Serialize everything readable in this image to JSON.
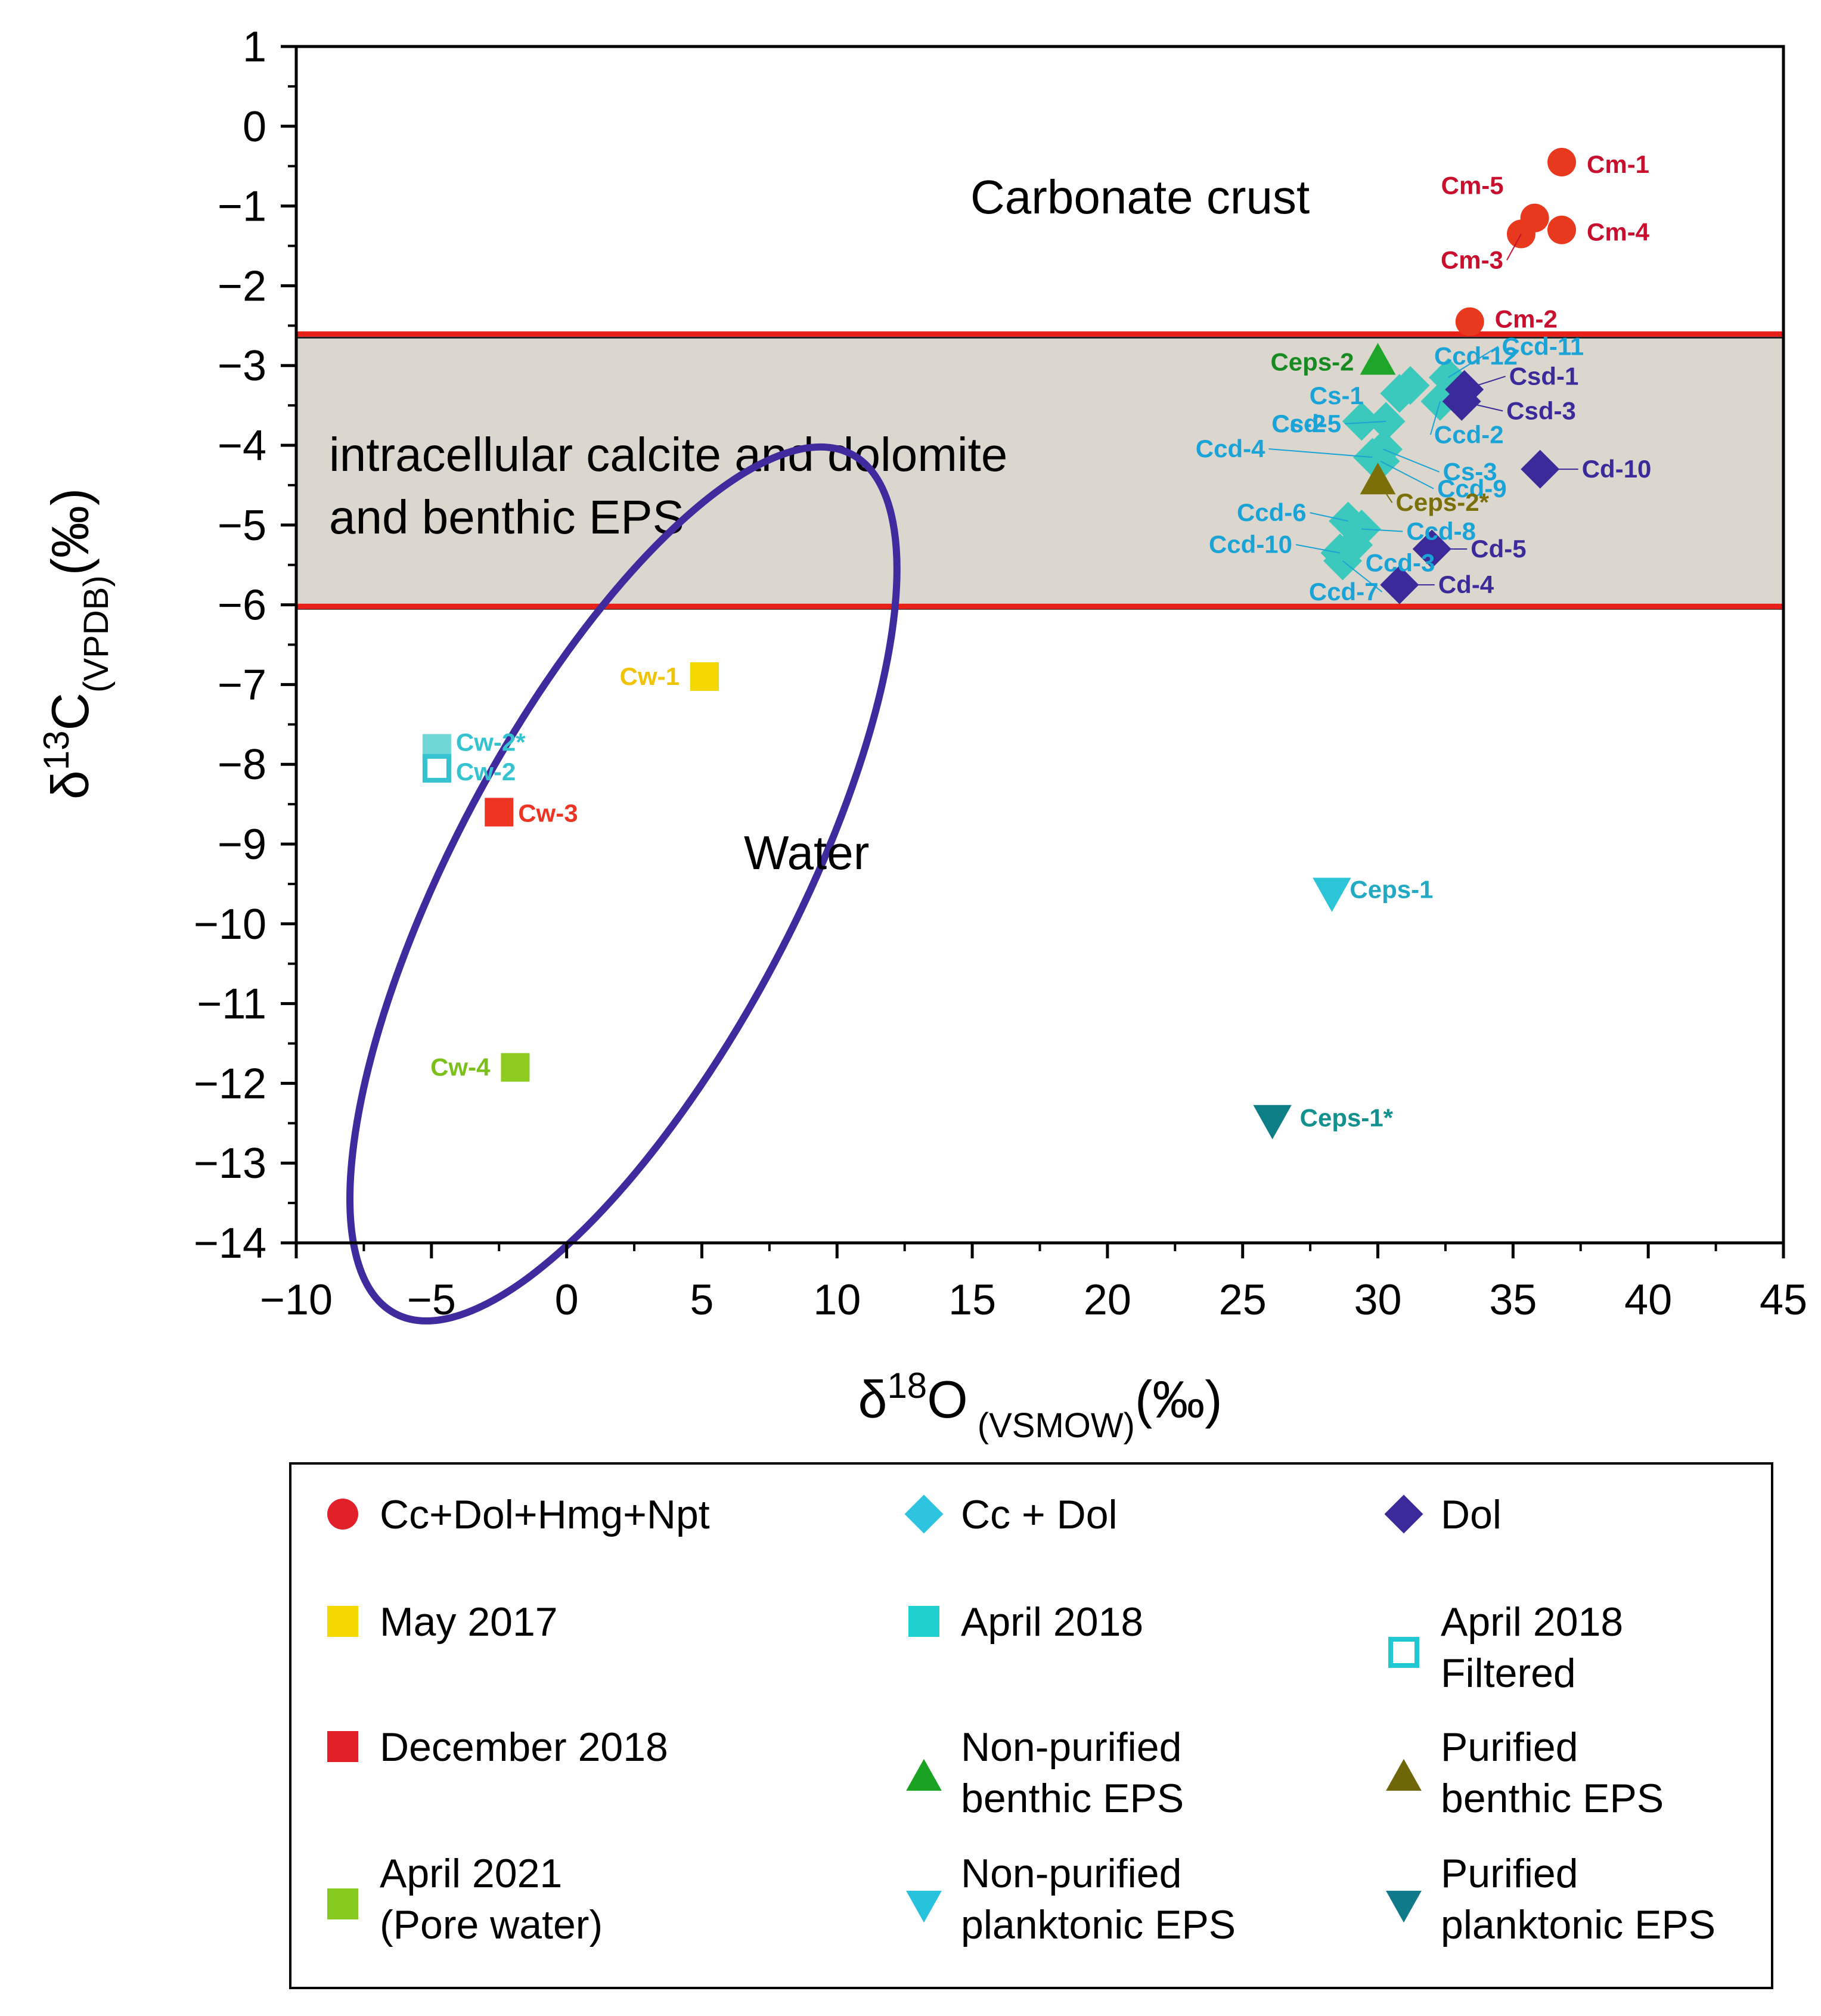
{
  "chart_data": {
    "type": "scatter",
    "xlabel": {
      "pre": "δ",
      "sup": "18",
      "main": "O",
      "sub": " (VSMOW)",
      "post": "(‰)"
    },
    "ylabel": {
      "pre": "δ",
      "sup": "13",
      "main": "C",
      "sub": "(VPDB)",
      "post": "(‰)"
    },
    "xlim": [
      -10,
      45
    ],
    "ylim": [
      -14,
      1
    ],
    "xticks": [
      -10,
      -5,
      0,
      5,
      10,
      15,
      20,
      25,
      30,
      35,
      40,
      45
    ],
    "yticks": [
      1,
      0,
      -1,
      -2,
      -3,
      -4,
      -5,
      -6,
      -7,
      -8,
      -9,
      -10,
      -11,
      -12,
      -13,
      -14
    ],
    "grid": false,
    "regions": {
      "carbonate_crust": {
        "label": "Carbonate crust"
      },
      "band": {
        "y_top": -2.65,
        "y_bottom": -6.05,
        "label_line1": "intracellular calcite and dolomite",
        "label_line2": "and benthic EPS",
        "fill": "#dcd7ce",
        "line_color": "#e8201a"
      },
      "water": {
        "label": "Water",
        "cx": 2.1,
        "cy": -9.5,
        "rx_x_units": 6.3,
        "ry_y_units": 6.1,
        "rotation_deg": 28,
        "color": "#3f2a9e"
      }
    },
    "series": [
      {
        "name": "Cc+Dol+Hmg+Npt",
        "marker": "circle",
        "color": "#e8391e",
        "label_color": "#c8102e",
        "points": [
          {
            "label": "Cm-1",
            "x": 36.8,
            "y": -0.45
          },
          {
            "label": "Cm-5",
            "x": 35.8,
            "y": -1.15
          },
          {
            "label": "Cm-4",
            "x": 36.8,
            "y": -1.3
          },
          {
            "label": "Cm-3",
            "x": 35.3,
            "y": -1.35
          },
          {
            "label": "Cm-2",
            "x": 33.4,
            "y": -2.45
          }
        ]
      },
      {
        "name": "Cc + Dol",
        "marker": "diamond",
        "color": "#3cc9bd",
        "label_color": "#1aa3d6",
        "points": [
          {
            "label": "Ccd-12",
            "x": 31.2,
            "y": -3.25
          },
          {
            "label": "Ccd-11",
            "x": 32.6,
            "y": -3.15
          },
          {
            "label": "Cs-1",
            "x": 30.8,
            "y": -3.35
          },
          {
            "label": "Ccd-2",
            "x": 32.3,
            "y": -3.45
          },
          {
            "label": "Cs-2",
            "x": 29.4,
            "y": -3.7
          },
          {
            "label": "Ccd-5",
            "x": 30.3,
            "y": -3.7
          },
          {
            "label": "Cs-3",
            "x": 30.2,
            "y": -4.05
          },
          {
            "label": "Ccd-9",
            "x": 30.1,
            "y": -4.2
          },
          {
            "label": "Ccd-4",
            "x": 29.8,
            "y": -4.15
          },
          {
            "label": "Ccd-6",
            "x": 28.9,
            "y": -4.95
          },
          {
            "label": "Ccd-8",
            "x": 29.4,
            "y": -5.05
          },
          {
            "label": "Ccd-10",
            "x": 28.6,
            "y": -5.35
          },
          {
            "label": "Ccd-3",
            "x": 29.1,
            "y": -5.25
          },
          {
            "label": "Ccd-7",
            "x": 28.7,
            "y": -5.45
          }
        ]
      },
      {
        "name": "Dol",
        "marker": "diamond",
        "color": "#3a2a9a",
        "label_color": "#3a2a9a",
        "points": [
          {
            "label": "Csd-1",
            "x": 33.2,
            "y": -3.3
          },
          {
            "label": "Csd-3",
            "x": 33.1,
            "y": -3.45
          },
          {
            "label": "Cd-10",
            "x": 36.0,
            "y": -4.3
          },
          {
            "label": "Cd-5",
            "x": 32.0,
            "y": -5.3
          },
          {
            "label": "Cd-4",
            "x": 30.8,
            "y": -5.75
          }
        ]
      },
      {
        "name": "May 2017",
        "marker": "square",
        "color": "#f5d800",
        "label_color": "#f0c400",
        "points": [
          {
            "label": "Cw-1",
            "x": 5.1,
            "y": -6.9
          }
        ]
      },
      {
        "name": "April 2018",
        "marker": "square",
        "color": "#6fd8d6",
        "label_color": "#35c4cf",
        "points": [
          {
            "label": "Cw-2*",
            "x": -4.8,
            "y": -7.8
          }
        ]
      },
      {
        "name": "April 2018 Filtered",
        "marker": "square-open",
        "color": "#35c4cf",
        "label_color": "#35c4cf",
        "points": [
          {
            "label": "Cw-2",
            "x": -4.8,
            "y": -8.05
          }
        ]
      },
      {
        "name": "December 2018",
        "marker": "square",
        "color": "#ee3524",
        "label_color": "#ee3524",
        "points": [
          {
            "label": "Cw-3",
            "x": -2.5,
            "y": -8.6
          }
        ]
      },
      {
        "name": "April 2021 (Pore water)",
        "marker": "square",
        "color": "#8dcb20",
        "label_color": "#7cc01c",
        "points": [
          {
            "label": "Cw-4",
            "x": -1.9,
            "y": -11.8
          }
        ]
      },
      {
        "name": "Non-purified benthic EPS",
        "marker": "triangle-up",
        "color": "#1fa52a",
        "label_color": "#178a22",
        "points": [
          {
            "label": "Ceps-2",
            "x": 30.0,
            "y": -2.95
          }
        ]
      },
      {
        "name": "Purified benthic EPS",
        "marker": "triangle-up",
        "color": "#7a6f08",
        "label_color": "#7a6f08",
        "points": [
          {
            "label": "Ceps-2*",
            "x": 30.0,
            "y": -4.45
          }
        ]
      },
      {
        "name": "Non-purified planktonic EPS",
        "marker": "triangle-down",
        "color": "#2cc5d8",
        "label_color": "#22a9c4",
        "points": [
          {
            "label": "Ceps-1",
            "x": 28.3,
            "y": -9.6
          }
        ]
      },
      {
        "name": "Purified planktonic EPS",
        "marker": "triangle-down",
        "color": "#0d7d86",
        "label_color": "#13918f",
        "points": [
          {
            "label": "Ceps-1*",
            "x": 26.1,
            "y": -12.45
          }
        ]
      }
    ],
    "legend": {
      "placement": "bottom",
      "entries": [
        {
          "series": "Cc+Dol+Hmg+Npt",
          "marker": "circle",
          "color": "#e1202a",
          "lines": [
            "Cc+Dol+Hmg+Npt"
          ]
        },
        {
          "series": "Cc + Dol",
          "marker": "diamond",
          "color": "#2ec3df",
          "lines": [
            "Cc + Dol"
          ]
        },
        {
          "series": "Dol",
          "marker": "diamond",
          "color": "#3a2a9a",
          "lines": [
            "Dol"
          ]
        },
        {
          "series": "May 2017",
          "marker": "square",
          "color": "#f5d800",
          "lines": [
            "May 2017"
          ]
        },
        {
          "series": "April 2018",
          "marker": "square",
          "color": "#20d0d0",
          "lines": [
            "April 2018"
          ]
        },
        {
          "series": "April 2018 Filtered",
          "marker": "square-open",
          "color": "#20c8d4",
          "lines": [
            "April 2018",
            "Filtered"
          ]
        },
        {
          "series": "December 2018",
          "marker": "square",
          "color": "#e1202a",
          "lines": [
            "December 2018"
          ]
        },
        {
          "series": "Non-purified benthic EPS",
          "marker": "triangle-up",
          "color": "#1aa323",
          "lines": [
            "Non-purified",
            "benthic EPS"
          ]
        },
        {
          "series": "Purified benthic EPS",
          "marker": "triangle-up",
          "color": "#6f6608",
          "lines": [
            "Purified",
            "benthic EPS"
          ]
        },
        {
          "series": "April 2021 (Pore water)",
          "marker": "square",
          "color": "#86c91f",
          "lines": [
            "April 2021",
            "(Pore water)"
          ]
        },
        {
          "series": "Non-purified planktonic EPS",
          "marker": "triangle-down",
          "color": "#27c3dc",
          "lines": [
            "Non-purified",
            "planktonic EPS"
          ]
        },
        {
          "series": "Purified planktonic EPS",
          "marker": "triangle-down",
          "color": "#0e7a8a",
          "lines": [
            "Purified",
            "planktonic EPS"
          ]
        }
      ]
    }
  }
}
